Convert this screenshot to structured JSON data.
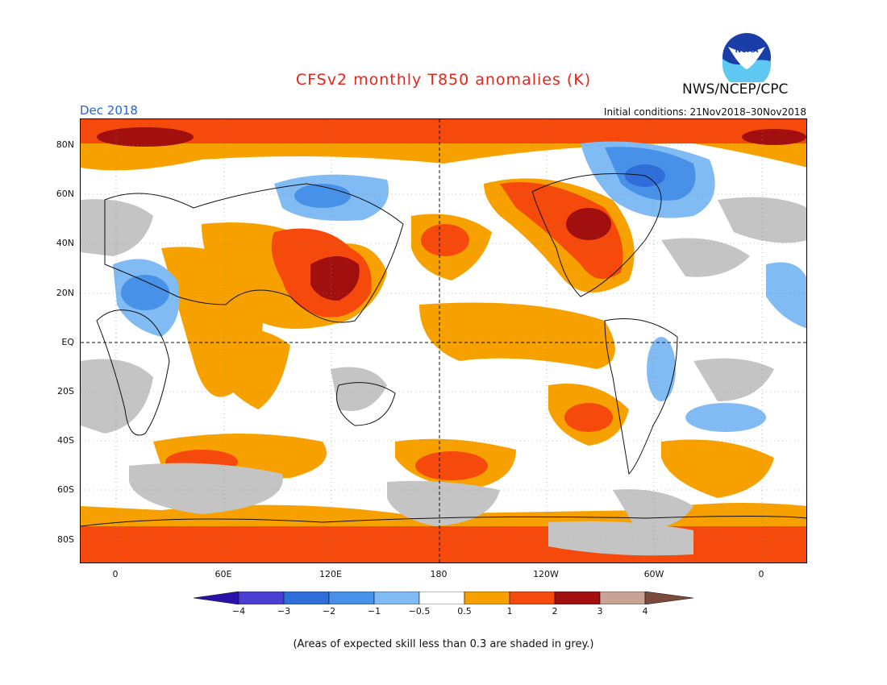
{
  "header": {
    "title": "CFSv2 monthly T850 anomalies (K)",
    "month": "Dec 2018",
    "initial_conditions": "Initial conditions: 21Nov2018–30Nov2018",
    "agency": "NWS/NCEP/CPC",
    "logo_text": "NOAA"
  },
  "map": {
    "lat_labels": [
      "80N",
      "60N",
      "40N",
      "20N",
      "EQ",
      "20S",
      "40S",
      "60S",
      "80S"
    ],
    "lon_labels": [
      "0",
      "60E",
      "120E",
      "180",
      "120W",
      "60W",
      "0"
    ]
  },
  "colorbar": {
    "labels": [
      "−4",
      "−3",
      "−2",
      "−1",
      "−0.5",
      "0.5",
      "1",
      "2",
      "3",
      "4"
    ],
    "colors": [
      "#2a12a8",
      "#4a3fd2",
      "#2f6ed8",
      "#4792e8",
      "#80bcf3",
      "#ffffff",
      "#f7a100",
      "#f54a0c",
      "#a20f0f",
      "#c9a296",
      "#7c4a3a"
    ]
  },
  "palette": {
    "grey": "#c4c4c4"
  },
  "footer": {
    "note": "(Areas of expected skill less than 0.3 are shaded in grey.)"
  }
}
